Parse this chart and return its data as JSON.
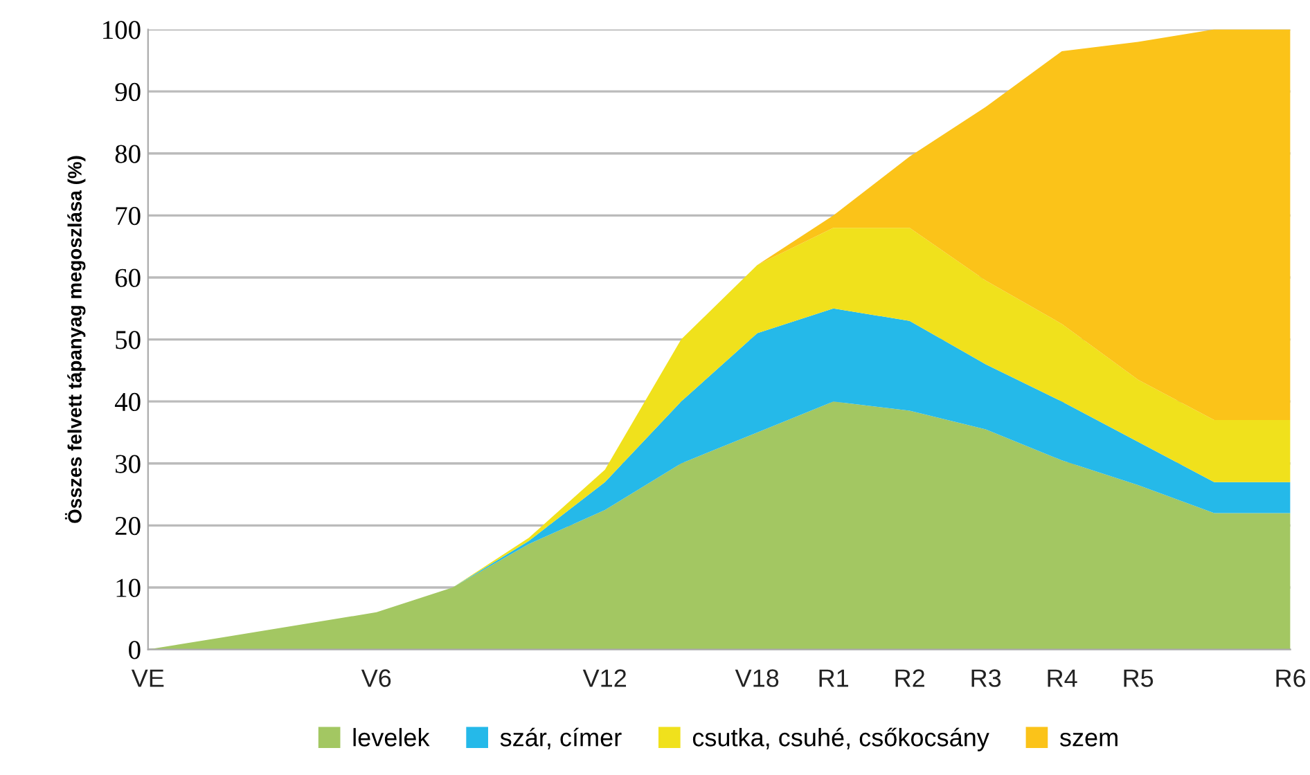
{
  "chart_data": {
    "type": "area",
    "stacked": true,
    "ylabel": "Összes felvett tápanyag megoszlása (%)",
    "categories": [
      "VE",
      null,
      null,
      "V6",
      null,
      null,
      "V12",
      null,
      "V18",
      "R1",
      "R2",
      "R3",
      "R4",
      "R5",
      null,
      "R6"
    ],
    "series": [
      {
        "name": "levelek",
        "color": "#a3c762",
        "values": [
          0,
          2,
          4,
          6,
          10,
          17,
          22.5,
          30,
          35,
          40,
          38.5,
          35.5,
          30.5,
          26.5,
          22,
          22
        ]
      },
      {
        "name": "szár, címer",
        "color": "#25b9e9",
        "values": [
          0,
          0,
          0,
          0,
          0,
          0.5,
          4.5,
          10,
          16,
          15,
          14.5,
          10.5,
          9.5,
          7,
          5,
          5
        ]
      },
      {
        "name": "csutka, csuhé, csőkocsány",
        "color": "#f0e11c",
        "values": [
          0,
          0,
          0,
          0,
          0,
          0.5,
          2,
          10,
          11,
          13,
          15,
          13.5,
          12.5,
          10,
          10,
          10
        ]
      },
      {
        "name": "szem",
        "color": "#fbc319",
        "values": [
          0,
          0,
          0,
          0,
          0,
          0,
          0,
          0,
          0,
          2,
          11.5,
          28,
          44,
          54.5,
          63,
          63
        ]
      }
    ],
    "ylim": [
      0,
      100
    ],
    "yticks": [
      0,
      10,
      20,
      30,
      40,
      50,
      60,
      70,
      80,
      90,
      100
    ],
    "grid": "y",
    "legend": "bottom"
  }
}
